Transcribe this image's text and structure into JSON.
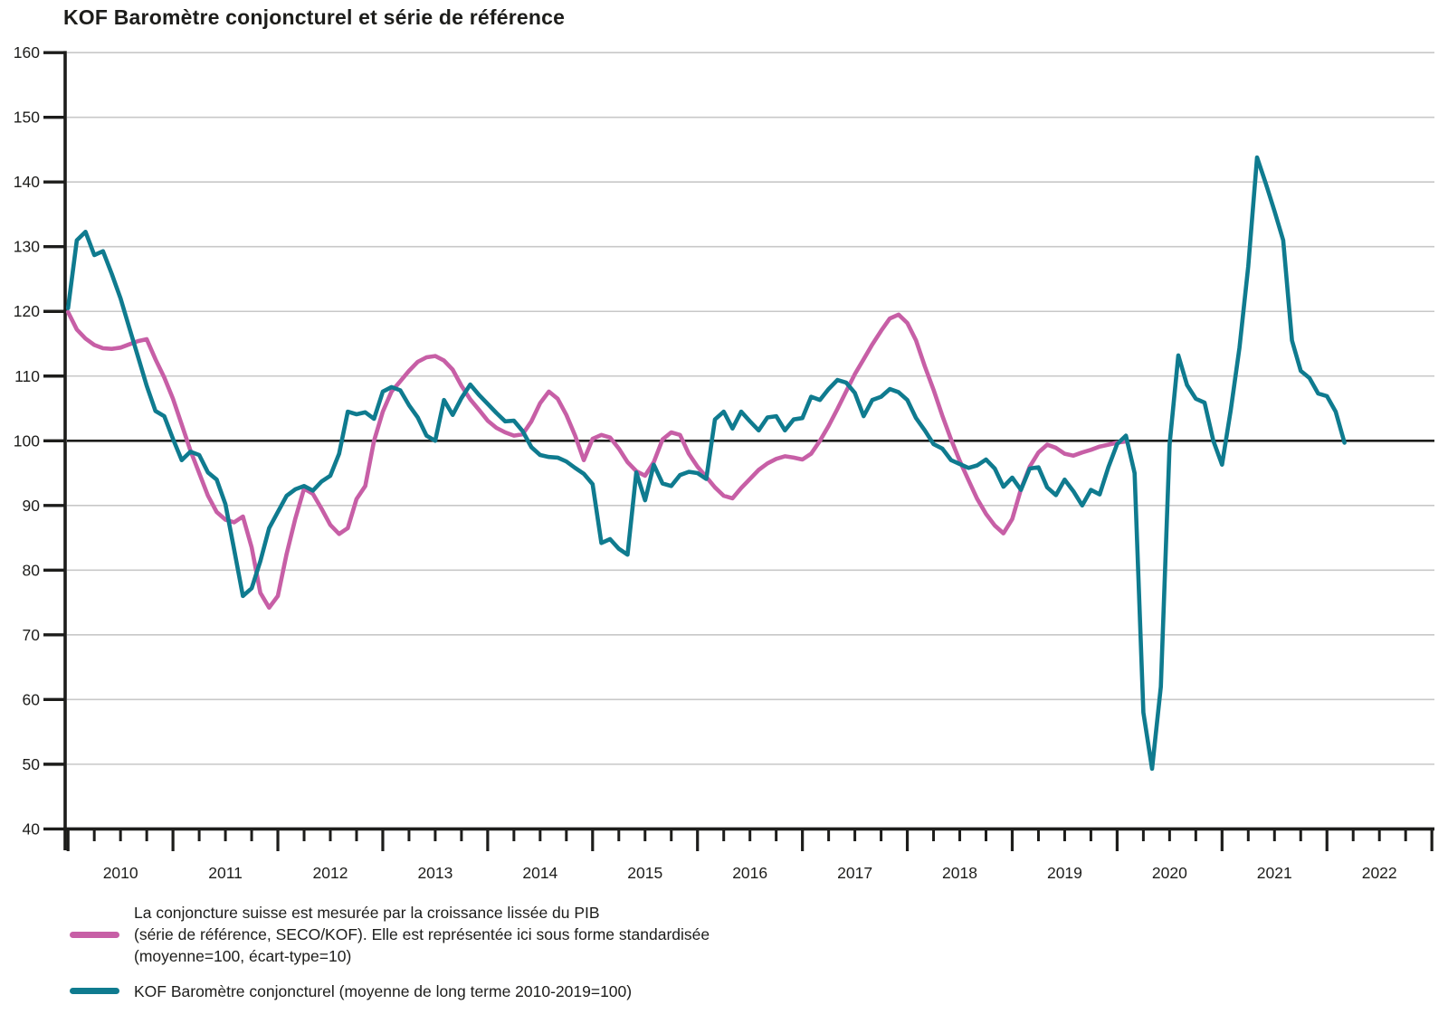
{
  "page_title": "KOF Baromètre conjoncturel et série de référence",
  "chart_data": {
    "type": "line",
    "title": "KOF Baromètre conjoncturel et série de référence",
    "background": "#ffffff",
    "grid": true,
    "grid_color": "#c8c8c8",
    "axis_color": "#1d1d1b",
    "legend_position": "bottom-left",
    "x_axis": {
      "start": "2010-01",
      "frequency": "monthly",
      "year_labels": [
        "2010",
        "2011",
        "2012",
        "2013",
        "2014",
        "2015",
        "2016",
        "2017",
        "2018",
        "2019",
        "2020",
        "2021",
        "2022"
      ],
      "minor_ticks": "quarterly"
    },
    "y_axis": {
      "min": 40,
      "max": 160,
      "step": 10,
      "tick_labels": [
        40,
        50,
        60,
        70,
        80,
        90,
        100,
        110,
        120,
        130,
        140,
        150,
        160
      ],
      "reference_line": 100
    },
    "series": [
      {
        "id": "reference-series",
        "color": "#c75fa6",
        "start": "2010-01",
        "legend_lines": [
          "La conjoncture suisse est mesurée par la croissance lissée du PIB",
          "(série de référence, SECO/KOF). Elle est représentée ici sous forme standardisée",
          "(moyenne=100, écart-type=10)"
        ],
        "values": [
          119.9,
          117.2,
          115.8,
          114.8,
          114.3,
          114.2,
          114.4,
          114.9,
          115.4,
          115.7,
          112.6,
          109.8,
          106.5,
          102.5,
          98.5,
          95.0,
          91.5,
          89.0,
          87.8,
          87.4,
          88.3,
          83.5,
          76.5,
          74.2,
          76.0,
          82.5,
          88.0,
          92.6,
          91.8,
          89.5,
          87.0,
          85.6,
          86.5,
          91.0,
          93.0,
          100.0,
          104.5,
          107.6,
          109.2,
          110.8,
          112.2,
          112.9,
          113.1,
          112.4,
          111.0,
          108.5,
          106.4,
          104.8,
          103.1,
          102.0,
          101.3,
          100.8,
          101.0,
          103.0,
          105.8,
          107.6,
          106.5,
          104.0,
          100.8,
          97.0,
          100.3,
          100.9,
          100.5,
          98.8,
          96.7,
          95.3,
          94.6,
          96.7,
          100.2,
          101.3,
          100.9,
          98.0,
          96.0,
          94.4,
          92.8,
          91.5,
          91.1,
          92.7,
          94.1,
          95.5,
          96.5,
          97.2,
          97.6,
          97.4,
          97.1,
          98.0,
          100.0,
          102.3,
          104.9,
          107.6,
          110.3,
          112.6,
          114.9,
          117.0,
          118.9,
          119.5,
          118.2,
          115.5,
          111.5,
          107.9,
          103.9,
          100.2,
          96.9,
          93.9,
          91.0,
          88.7,
          86.9,
          85.7,
          87.9,
          92.5,
          96.0,
          98.2,
          99.4,
          98.9,
          98.0,
          97.7,
          98.2,
          98.6,
          99.1,
          99.4,
          99.7,
          99.9
        ]
      },
      {
        "id": "kof-barometer",
        "color": "#0f7b8f",
        "start": "2010-01",
        "legend_lines": [
          "KOF Baromètre conjoncturel (moyenne de long terme 2010-2019=100)"
        ],
        "values": [
          120.5,
          131.0,
          132.3,
          128.7,
          129.3,
          125.8,
          122.0,
          117.5,
          113.0,
          108.5,
          104.6,
          103.8,
          100.3,
          97.0,
          98.3,
          97.8,
          95.1,
          94.0,
          90.2,
          83.2,
          76.0,
          77.2,
          81.4,
          86.5,
          89.0,
          91.5,
          92.5,
          93.0,
          92.3,
          93.7,
          94.6,
          98.0,
          104.5,
          104.1,
          104.4,
          103.4,
          107.6,
          108.3,
          107.8,
          105.5,
          103.6,
          100.8,
          100.0,
          106.3,
          104.0,
          106.6,
          108.7,
          107.1,
          105.7,
          104.3,
          103.0,
          103.1,
          101.5,
          99.0,
          97.8,
          97.5,
          97.4,
          96.8,
          95.8,
          94.9,
          93.3,
          84.2,
          84.8,
          83.3,
          82.4,
          95.1,
          90.8,
          96.3,
          93.4,
          93.0,
          94.7,
          95.2,
          95.0,
          94.1,
          103.3,
          104.5,
          101.9,
          104.5,
          103.0,
          101.6,
          103.6,
          103.8,
          101.6,
          103.3,
          103.5,
          106.8,
          106.3,
          108.0,
          109.4,
          109.0,
          107.4,
          103.8,
          106.3,
          106.8,
          108.0,
          107.5,
          106.3,
          103.5,
          101.6,
          99.5,
          98.8,
          97.0,
          96.4,
          95.8,
          96.2,
          97.1,
          95.7,
          92.9,
          94.3,
          92.4,
          95.7,
          95.9,
          92.8,
          91.6,
          94.0,
          92.2,
          90.0,
          92.4,
          91.7,
          95.9,
          99.5,
          100.8,
          95.0,
          58.0,
          49.3,
          62.0,
          99.5,
          113.2,
          108.6,
          106.5,
          105.9,
          100.0,
          96.3,
          104.8,
          114.4,
          127.0,
          143.8,
          139.8,
          135.5,
          131.0,
          115.5,
          110.8,
          109.7,
          107.3,
          106.9,
          104.5,
          99.7
        ]
      }
    ]
  }
}
